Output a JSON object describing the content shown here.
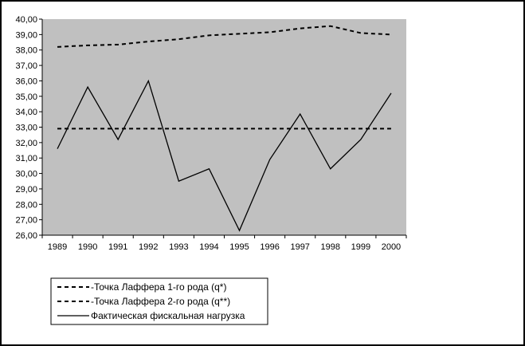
{
  "chart_data": {
    "type": "line",
    "x": [
      "1989",
      "1990",
      "1991",
      "1992",
      "1993",
      "1994",
      "1995",
      "1996",
      "1997",
      "1998",
      "1999",
      "2000"
    ],
    "series": [
      {
        "name": "-Точка Лаффера 1-го рода (q*)",
        "values": [
          32.9,
          32.9,
          32.9,
          32.9,
          32.9,
          32.9,
          32.9,
          32.9,
          32.9,
          32.9,
          32.9,
          32.9
        ],
        "style": "dashed"
      },
      {
        "name": "-Точка Лаффера 2-го рода (q**)",
        "values": [
          38.2,
          38.3,
          38.35,
          38.55,
          38.7,
          38.95,
          39.05,
          39.15,
          39.4,
          39.55,
          39.1,
          39.0
        ],
        "style": "dashed"
      },
      {
        "name": "Фактическая фискальная нагрузка",
        "values": [
          31.6,
          35.6,
          32.2,
          36.0,
          29.5,
          30.3,
          26.3,
          30.9,
          33.85,
          30.3,
          32.2,
          35.2
        ],
        "style": "solid"
      }
    ],
    "ylim": [
      26,
      40
    ],
    "yticks": [
      "26,00",
      "27,00",
      "28,00",
      "29,00",
      "30,00",
      "31,00",
      "32,00",
      "33,00",
      "34,00",
      "35,00",
      "36,00",
      "37,00",
      "38,00",
      "39,00",
      "40,00"
    ],
    "grid": false,
    "legend_position": "bottom-left",
    "plot_background": "#c0c0c0",
    "line_color": "#000000"
  }
}
